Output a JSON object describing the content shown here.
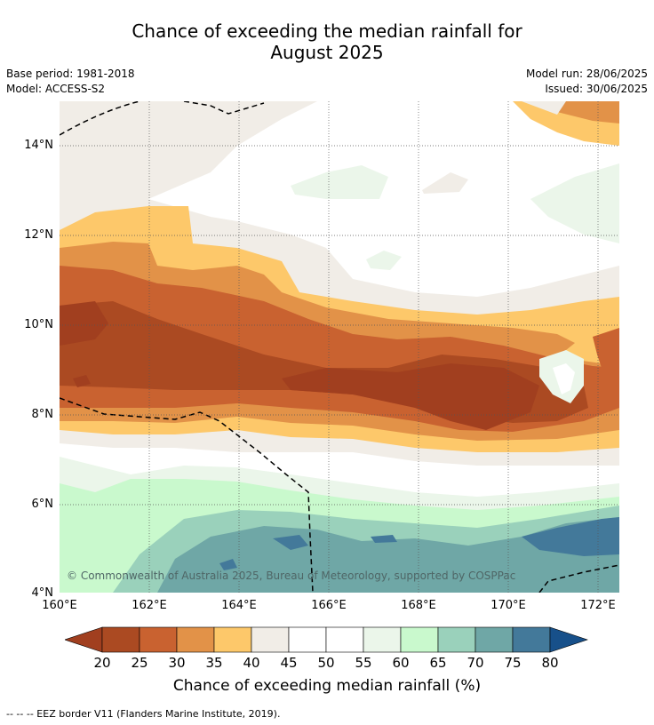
{
  "title_line1": "Chance of exceeding the median rainfall for",
  "title_line2": "August 2025",
  "base_period": "Base period: 1981-2018",
  "model": "Model: ACCESS-S2",
  "model_run": "Model run: 28/06/2025",
  "issued": "Issued: 30/06/2025",
  "lat_ticks": [
    "14°N",
    "12°N",
    "10°N",
    "8°N",
    "6°N",
    "4°N"
  ],
  "lon_ticks": [
    "160°E",
    "162°E",
    "164°E",
    "166°E",
    "168°E",
    "170°E",
    "172°E"
  ],
  "copyright": "© Commonwealth of Australia 2025, Bureau of Meteorology, supported by COSPPac",
  "colorbar": {
    "labels": [
      "20",
      "25",
      "30",
      "35",
      "40",
      "45",
      "50",
      "55",
      "60",
      "65",
      "70",
      "75",
      "80"
    ],
    "colors": [
      "#a13f1f",
      "#ab4a22",
      "#c96230",
      "#e29248",
      "#fdc86a",
      "#f1ede7",
      "#ffffff",
      "#ffffff",
      "#ebf6ea",
      "#c9f9cd",
      "#9ad1bb",
      "#6fa7a6",
      "#43799a",
      "#17508a"
    ],
    "title": "Chance of exceeding median rainfall (%)"
  },
  "eez_note": "--  --  -- EEZ border V11 (Flanders Marine Institute, 2019)."
}
